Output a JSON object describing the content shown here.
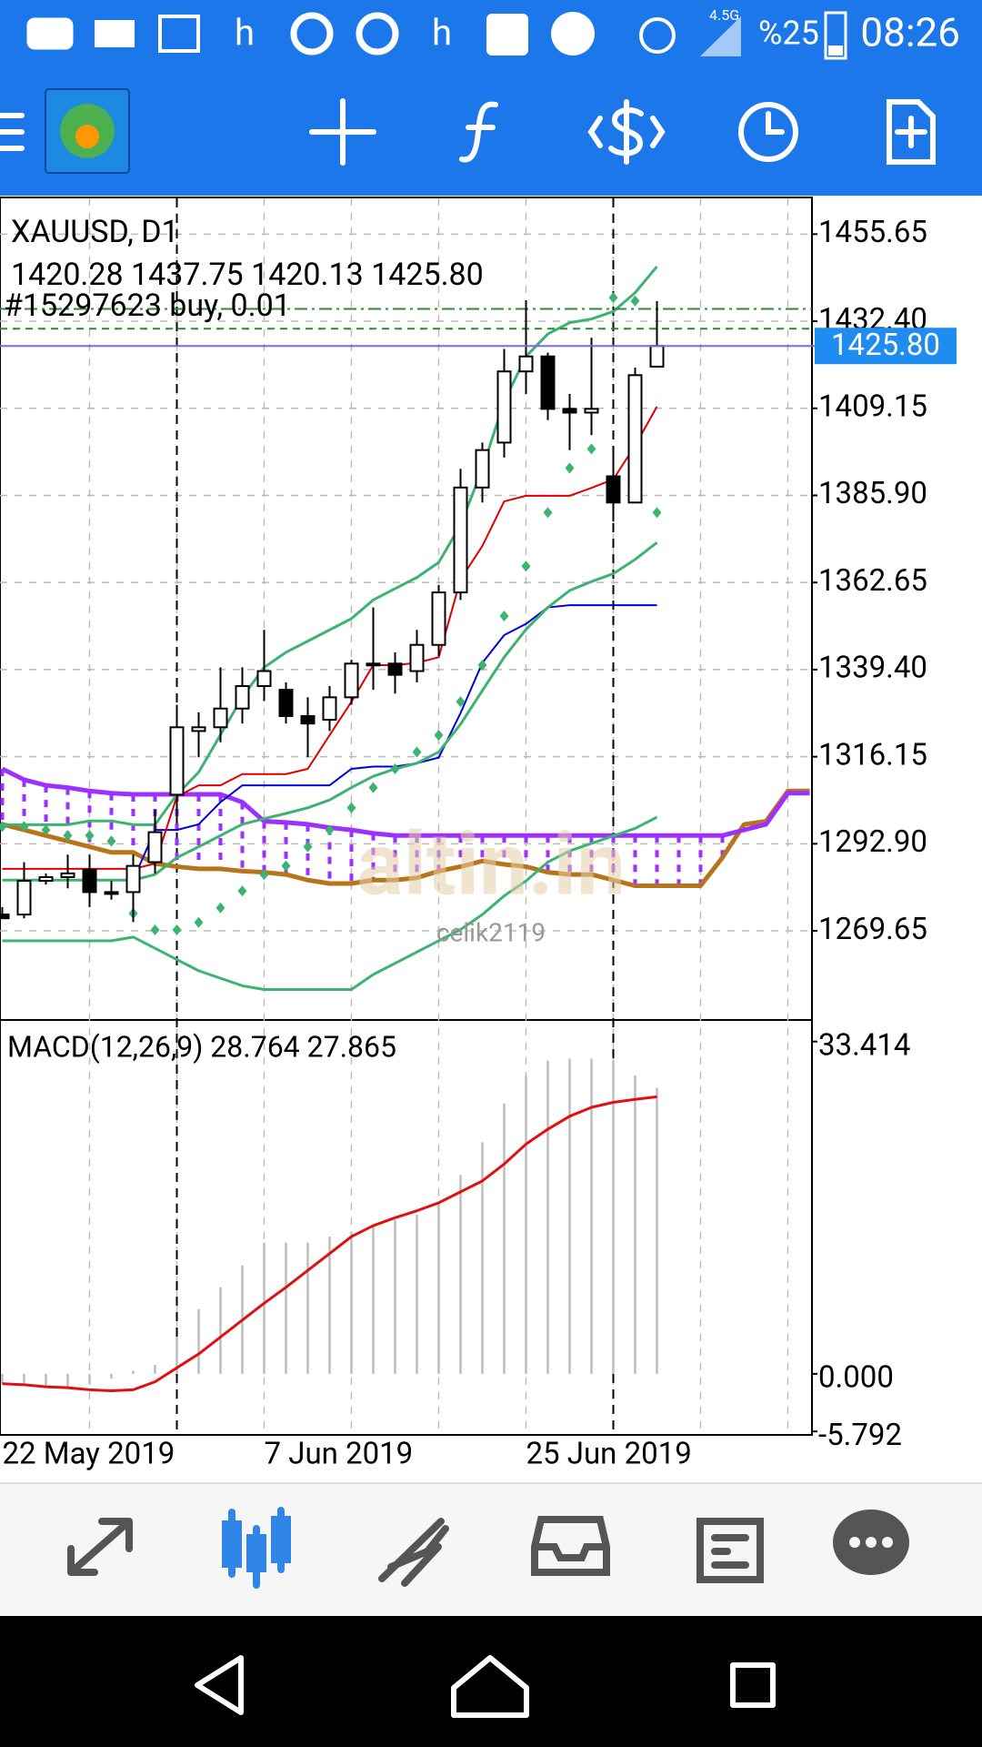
{
  "status_bar": {
    "apps": [
      "h",
      "h"
    ],
    "network": "4.5G",
    "battery": "%25",
    "time": "08:26"
  },
  "chart": {
    "symbol": "XAUUSD, D1",
    "ohlc_header": "1420.28 1437.75 1420.13 1425.80",
    "order_label": "#15297623 buy, 0.01",
    "order_lines": [
      1435.7,
      1430.4
    ],
    "bid": {
      "value": 1425.8,
      "label": "1425.80"
    },
    "ylim": [
      1246.1,
      1465.2
    ],
    "yticks": [
      1455.65,
      {
        "value": 1432.4,
        "label": "1432.40"
      },
      1409.15,
      {
        "value": 1385.9,
        "label": "1385.90"
      },
      1362.65,
      {
        "value": 1339.4,
        "label": "1339.40"
      },
      1316.15,
      {
        "value": 1292.9,
        "label": "1292.90"
      },
      1269.65
    ],
    "categories": [
      "22 May 2019",
      null,
      null,
      null,
      null,
      null,
      null,
      null,
      null,
      null,
      null,
      null,
      "7 Jun 2019",
      null,
      null,
      null,
      null,
      null,
      null,
      null,
      null,
      null,
      null,
      null,
      "25 Jun 2019",
      null,
      null,
      null,
      null,
      null,
      null
    ],
    "candles": {
      "open": [
        1274,
        1274,
        1283,
        1284,
        1286,
        1280,
        1280,
        1288,
        1306,
        1323,
        1324,
        1329,
        1335,
        1334,
        1327,
        1326,
        1332,
        1341,
        1341,
        1339,
        1346,
        1360,
        1388,
        1400,
        1419,
        1423,
        1409,
        1408,
        1391,
        1384,
        1420.28
      ],
      "high": [
        1276,
        1288,
        1285,
        1290,
        1290,
        1283,
        1290,
        1302,
        1330,
        1328,
        1340,
        1340,
        1350,
        1336,
        1332,
        1335,
        1342,
        1356,
        1344,
        1350,
        1362,
        1393,
        1400,
        1425,
        1438,
        1424,
        1413,
        1428,
        1398,
        1420,
        1437.75
      ],
      "low": [
        1273,
        1273,
        1282,
        1281,
        1276,
        1278,
        1272,
        1285,
        1300,
        1316,
        1320,
        1325,
        1331,
        1325,
        1316,
        1323,
        1330,
        1334,
        1333,
        1336,
        1343,
        1358,
        1384,
        1396,
        1413,
        1406,
        1398,
        1402,
        1379,
        1384,
        1420.13
      ],
      "close": [
        1273,
        1283,
        1284,
        1285,
        1280,
        1280,
        1287,
        1296,
        1324,
        1324,
        1329,
        1335,
        1339,
        1327,
        1325,
        1332,
        1341,
        1341,
        1338,
        1346,
        1360,
        1388,
        1398,
        1419,
        1423,
        1409,
        1408,
        1409,
        1384,
        1418,
        1425.8
      ]
    },
    "bollinger": {
      "color": "#3cb371",
      "upper": [
        1298,
        1298,
        1298,
        1298,
        1299,
        1299,
        1298,
        1298,
        1306,
        1312,
        1322,
        1332,
        1340,
        1344,
        1347,
        1350,
        1353,
        1358,
        1361,
        1364,
        1368,
        1378,
        1393,
        1411,
        1423,
        1429,
        1432,
        1433,
        1435,
        1440,
        1447
      ],
      "middle": [
        1283.2,
        1283.2,
        1283.2,
        1283.2,
        1283.2,
        1283.2,
        1283.2,
        1284.7,
        1289.2,
        1292.1,
        1295.1,
        1298.1,
        1299.6,
        1301.0,
        1302.5,
        1304.6,
        1307.9,
        1310.9,
        1312.9,
        1314.4,
        1317.4,
        1324.8,
        1333.8,
        1342.7,
        1350.1,
        1356.0,
        1360.5,
        1362.9,
        1365.0,
        1368.8,
        1373.3
      ],
      "lower": [
        1267,
        1267,
        1267,
        1267,
        1267,
        1267,
        1268,
        1265,
        1262,
        1259,
        1257,
        1255,
        1254,
        1254,
        1254,
        1254,
        1254,
        1258,
        1261,
        1264,
        1267,
        1270,
        1274,
        1279,
        1283,
        1288,
        1291,
        1293,
        1295,
        1297,
        1300
      ]
    },
    "ichimoku": {
      "tenkan": [
        1286.2,
        1286.2,
        1286.2,
        1286.2,
        1286.2,
        1286.2,
        1286.2,
        1287.6,
        1305.5,
        1308.5,
        1308.5,
        1311.5,
        1311.5,
        1311.5,
        1312.9,
        1321.9,
        1330.8,
        1340.6,
        1340.6,
        1341.2,
        1342.7,
        1363.5,
        1372.4,
        1384.3,
        1385.8,
        1385.8,
        1385.8,
        1387.9,
        1390.2,
        1399.2,
        1409.6
      ],
      "kijun": [
        1283.2,
        1283.2,
        1283.2,
        1283.2,
        1283.2,
        1283.2,
        1283.2,
        1296.6,
        1296.6,
        1298.1,
        1304.0,
        1308.5,
        1308.5,
        1308.5,
        1308.5,
        1308.5,
        1312.9,
        1313.5,
        1313.5,
        1314.4,
        1315.9,
        1327.8,
        1341.2,
        1348.6,
        1351.6,
        1356.0,
        1356.6,
        1356.6,
        1356.6,
        1356.6,
        1356.6
      ],
      "span_a": [
        1312.9,
        1310.0,
        1308.5,
        1307.9,
        1307.0,
        1306.4,
        1306.1,
        1306.1,
        1306.1,
        1306.1,
        1306.1,
        1304.0,
        1298.9,
        1298.6,
        1298.1,
        1297.2,
        1296.6,
        1295.7,
        1295.1,
        1295.1,
        1295.1,
        1295.1,
        1295.1,
        1295.1,
        1295.1,
        1295.1,
        1295.1,
        1295.1,
        1295.1,
        1295.1,
        1295.1,
        1295.1,
        1295.1,
        1295.1,
        1296.6,
        1298.1,
        1306.4,
        1306.4
      ],
      "span_b": [
        1298.1,
        1296.6,
        1295.1,
        1293.6,
        1292.1,
        1290.6,
        1290.6,
        1287.6,
        1286.8,
        1286.2,
        1286.2,
        1285.6,
        1285.3,
        1284.7,
        1283.2,
        1282.3,
        1282.3,
        1283.2,
        1283.2,
        1283.8,
        1285.6,
        1286.8,
        1288.3,
        1287.4,
        1286.8,
        1285.3,
        1284.7,
        1284.7,
        1283.2,
        1281.7,
        1281.7,
        1281.7,
        1281.7,
        1289.2,
        1298.1,
        1298.9,
        1307.0,
        1307.0
      ]
    },
    "sar": [
      1297.5,
      1297.5,
      1296.6,
      1295.1,
      1295.1,
      1293.6,
      1274.3,
      1269.9,
      1269.9,
      1271.9,
      1275.8,
      1280.3,
      1284.7,
      1287,
      1292.1,
      1296.6,
      1302.5,
      1307.9,
      1312.9,
      1317.4,
      1321.9,
      1330.8,
      1340.6,
      1353.7,
      1367,
      1381.3,
      1393.2,
      1398.3,
      1438.7,
      1437.8,
      1381.3
    ],
    "watermark": "altin.in",
    "user": "celik2119"
  },
  "macd": {
    "label": "MACD(12,26,9) 28.764 27.865",
    "ylim": [
      -6.05,
      35.4
    ],
    "yticks": [
      33.414,
      {
        "value": 0,
        "label": "0.000"
      },
      -5.792
    ],
    "histogram": [
      -1,
      -1,
      -1.2,
      -1.3,
      -1,
      -0.5,
      0.3,
      0.9,
      3.7,
      6.5,
      8.7,
      10.9,
      13.2,
      13.2,
      13.2,
      13.8,
      14.3,
      14.9,
      15.5,
      16,
      17.2,
      20,
      23.3,
      27.2,
      30,
      31.5,
      31.7,
      31.7,
      31.5,
      30,
      28.764
    ],
    "signal": [
      -1,
      -1.1,
      -1.3,
      -1.4,
      -1.6,
      -1.7,
      -1.6,
      -0.8,
      0.6,
      2,
      3.7,
      5.4,
      7.1,
      8.7,
      10.4,
      12.1,
      13.8,
      14.9,
      15.7,
      16.4,
      17.2,
      18.3,
      19.4,
      21.1,
      23.1,
      24.6,
      25.9,
      26.8,
      27.3,
      27.6,
      27.865
    ]
  }
}
